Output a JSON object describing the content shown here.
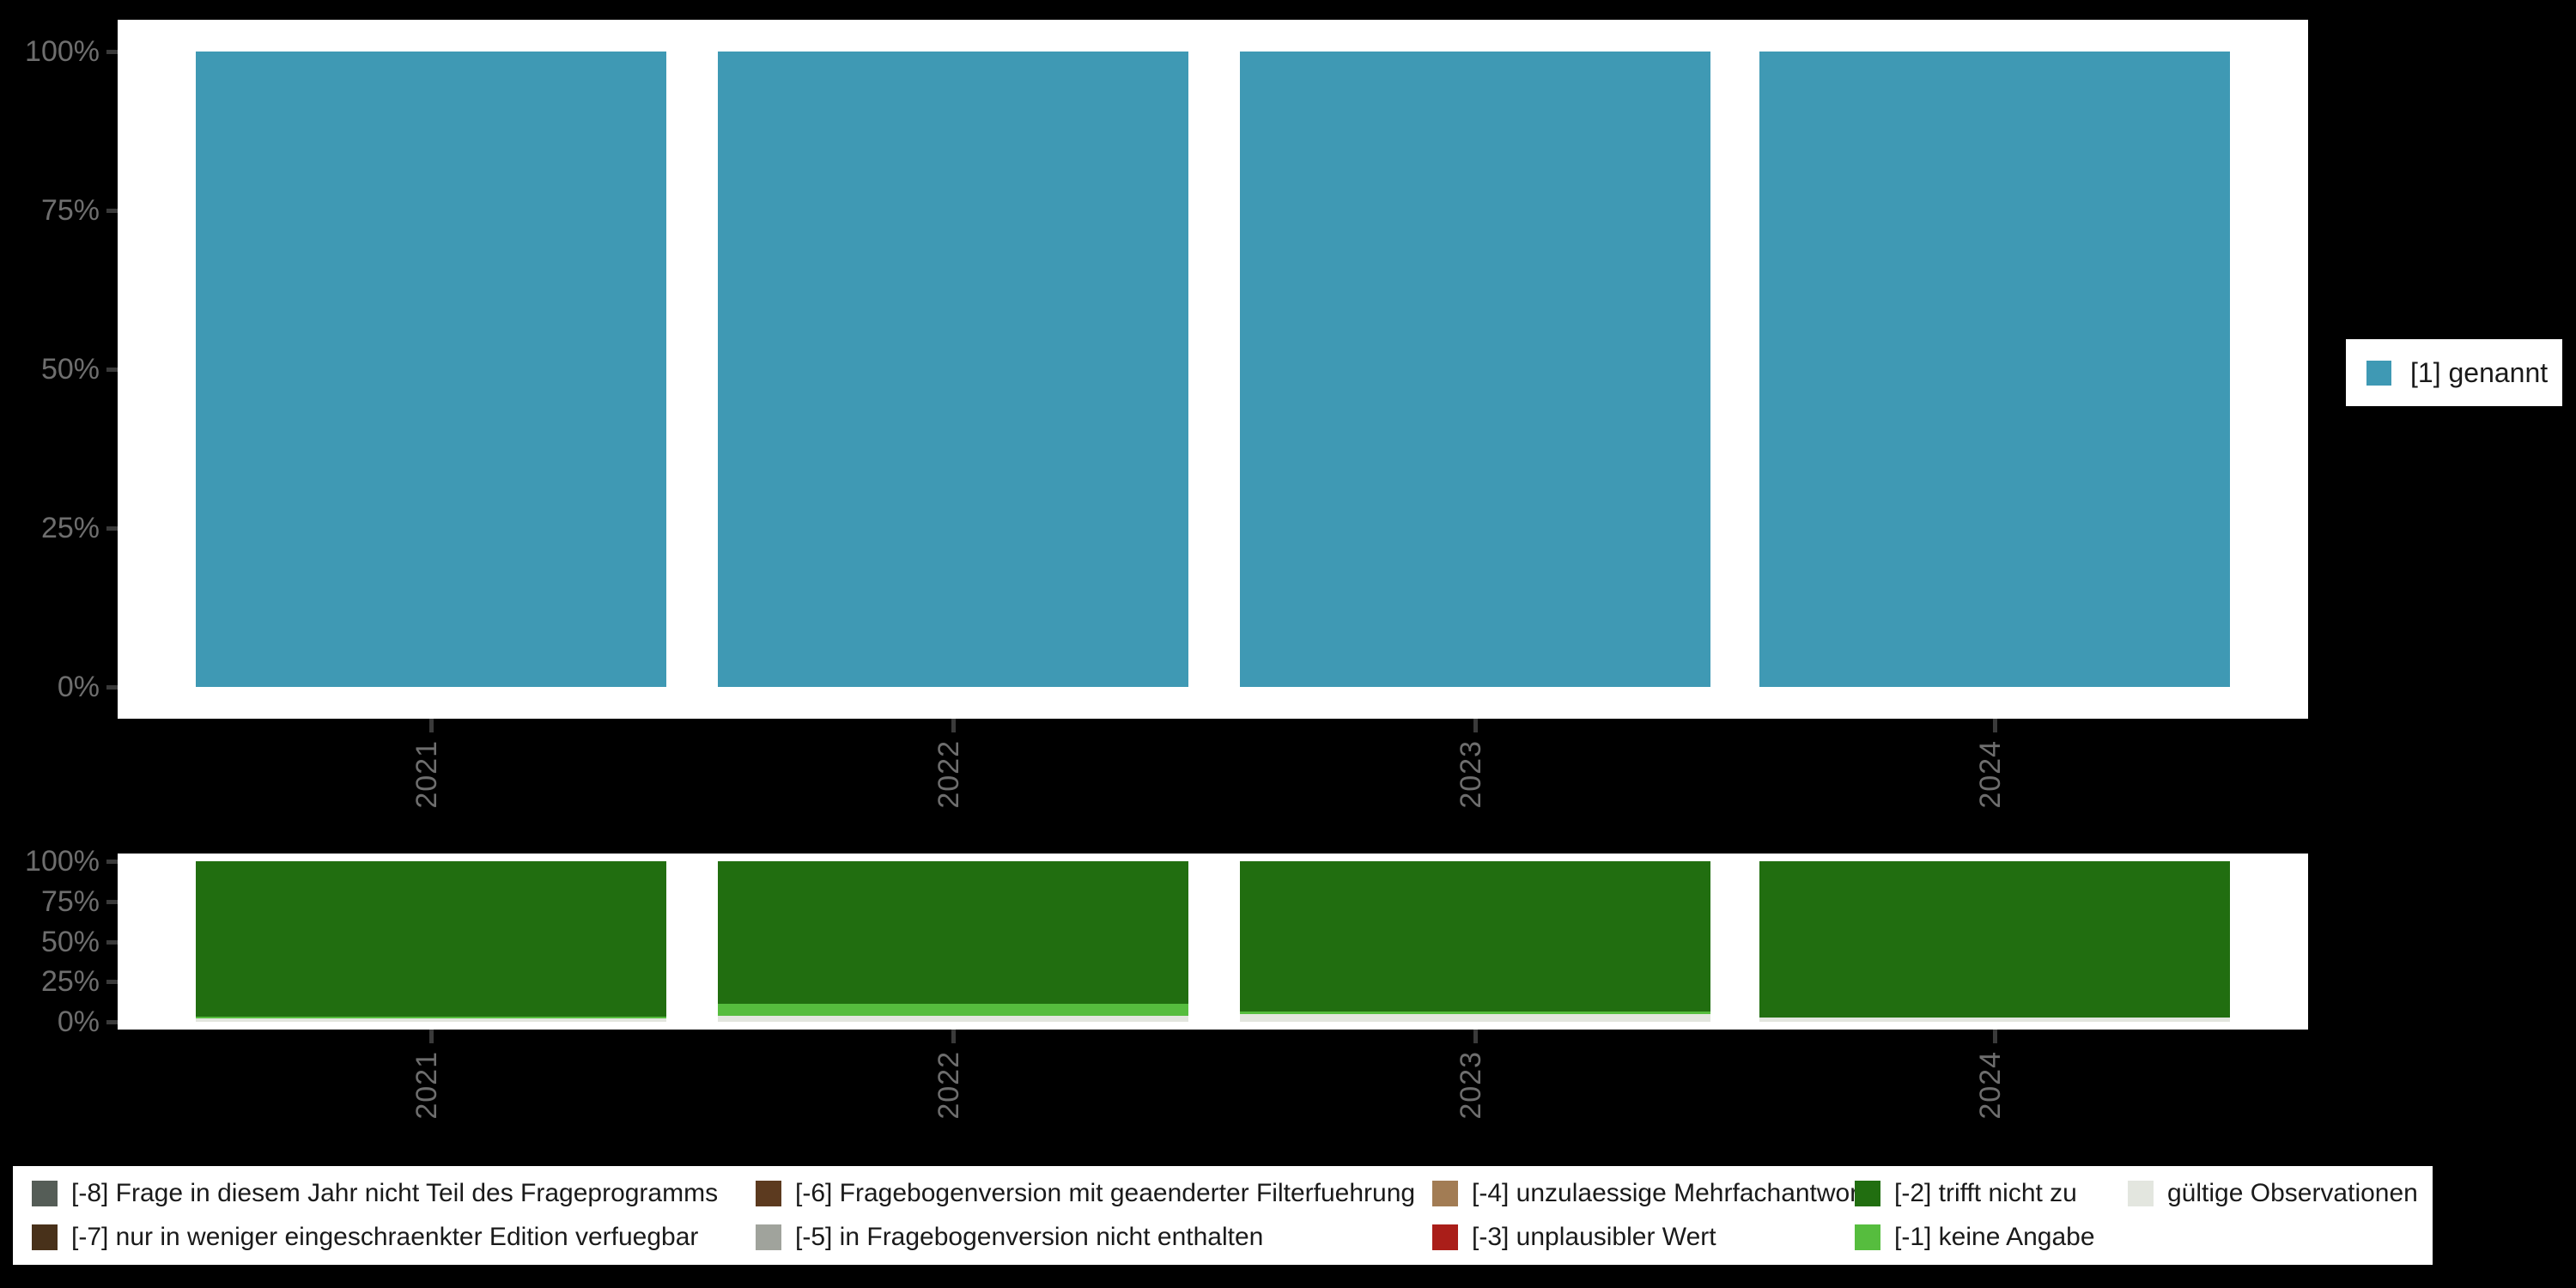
{
  "page": {
    "background": "#000000",
    "panel_background": "#ffffff"
  },
  "top_chart": {
    "y_axis_labels": [
      "100%",
      "75%",
      "50%",
      "25%",
      "0%"
    ],
    "x_axis_labels": [
      "2021",
      "2022",
      "2023",
      "2024"
    ],
    "legend": {
      "label": "[1] genannt",
      "color": "#3F99B4"
    }
  },
  "bottom_chart": {
    "y_axis_labels": [
      "100%",
      "75%",
      "50%",
      "25%",
      "0%"
    ],
    "x_axis_labels": [
      "2021",
      "2022",
      "2023",
      "2024"
    ]
  },
  "bottom_legend": {
    "items": [
      {
        "label": "[-8] Frage in diesem Jahr nicht Teil des Frageprogramms",
        "color": "#555D57"
      },
      {
        "label": "[-7] nur in weniger eingeschraenkter Edition verfuegbar",
        "color": "#48311A"
      },
      {
        "label": "[-6] Fragebogenversion mit geaenderter Filterfuehrung",
        "color": "#5C3A1F"
      },
      {
        "label": "[-5] in Fragebogenversion nicht enthalten",
        "color": "#A0A39C"
      },
      {
        "label": "[-4] unzulaessige Mehrfachantwort",
        "color": "#A27C54"
      },
      {
        "label": "[-3] unplausibler Wert",
        "color": "#AA1E19"
      },
      {
        "label": "[-2] trifft nicht zu",
        "color": "#216E10"
      },
      {
        "label": "[-1] keine Angabe",
        "color": "#56BD3E"
      },
      {
        "label": "gültige Observationen",
        "color": "#E3E6DF"
      }
    ]
  },
  "chart_data": [
    {
      "type": "bar",
      "subtype": "stacked-percent",
      "title": "",
      "xlabel": "",
      "ylabel": "",
      "categories": [
        "2021",
        "2022",
        "2023",
        "2024"
      ],
      "series": [
        {
          "name": "[1] genannt",
          "color": "#3F99B4",
          "values": [
            100,
            100,
            100,
            100
          ]
        }
      ],
      "ylim": [
        0,
        100
      ],
      "y_ticks": [
        "0%",
        "25%",
        "50%",
        "75%",
        "100%"
      ],
      "grid": false,
      "legend_position": "right"
    },
    {
      "type": "bar",
      "subtype": "stacked-percent",
      "title": "",
      "xlabel": "",
      "ylabel": "",
      "categories": [
        "2021",
        "2022",
        "2023",
        "2024"
      ],
      "stack_order": "bottom-to-top",
      "series": [
        {
          "name": "gültige Observationen",
          "color": "#E3E6DF",
          "values": [
            2,
            4,
            5,
            2.5
          ]
        },
        {
          "name": "[-1] keine Angabe",
          "color": "#56BD3E",
          "values": [
            1,
            7,
            1.5,
            0
          ]
        },
        {
          "name": "[-2] trifft nicht zu",
          "color": "#216E10",
          "values": [
            97,
            89,
            93.5,
            97.5
          ]
        }
      ],
      "legend_items_all": [
        "[-8] Frage in diesem Jahr nicht Teil des Frageprogramms",
        "[-7] nur in weniger eingeschraenkter Edition verfuegbar",
        "[-6] Fragebogenversion mit geaenderter Filterfuehrung",
        "[-5] in Fragebogenversion nicht enthalten",
        "[-4] unzulaessige Mehrfachantwort",
        "[-3] unplausibler Wert",
        "[-2] trifft nicht zu",
        "[-1] keine Angabe",
        "gültige Observationen"
      ],
      "ylim": [
        0,
        100
      ],
      "y_ticks": [
        "0%",
        "25%",
        "50%",
        "75%",
        "100%"
      ],
      "grid": false,
      "legend_position": "bottom"
    }
  ]
}
